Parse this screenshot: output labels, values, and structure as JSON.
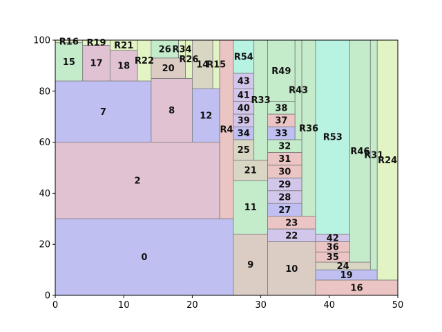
{
  "chart_data": {
    "type": "treemap",
    "xlim": [
      0,
      50
    ],
    "ylim": [
      0,
      100
    ],
    "xticks": [
      "0",
      "10",
      "20",
      "30",
      "40",
      "50"
    ],
    "yticks": [
      "0",
      "20",
      "40",
      "60",
      "80",
      "100"
    ],
    "grid": false,
    "palette": {
      "blue": "#bfbff2",
      "pink": "#e0c2d3",
      "green": "#c4ebca",
      "tan": "#dccdc4",
      "lavender": "#d3c6eb",
      "rose": "#ebc4c4",
      "mint": "#b8f2e0",
      "yellow": "#e3f4c4",
      "gray": "#dad6c4"
    },
    "rects": [
      {
        "label": "0",
        "x0": 0,
        "x1": 26,
        "y0": 0,
        "y1": 30,
        "color": "blue"
      },
      {
        "label": "2",
        "x0": 0,
        "x1": 24,
        "y0": 30,
        "y1": 60,
        "color": "pink"
      },
      {
        "label": "7",
        "x0": 0,
        "x1": 14,
        "y0": 60,
        "y1": 84,
        "color": "blue"
      },
      {
        "label": "15",
        "x0": 0,
        "x1": 4,
        "y0": 84,
        "y1": 99,
        "color": "green"
      },
      {
        "label": "R16",
        "x0": 0,
        "x1": 4,
        "y0": 99,
        "y1": 100,
        "color": "yellow"
      },
      {
        "label": "17",
        "x0": 4,
        "x1": 8,
        "y0": 84,
        "y1": 98,
        "color": "pink"
      },
      {
        "label": "R19",
        "x0": 4,
        "x1": 8,
        "y0": 98,
        "y1": 100,
        "color": "yellow"
      },
      {
        "label": "18",
        "x0": 8,
        "x1": 12,
        "y0": 84,
        "y1": 96,
        "color": "pink"
      },
      {
        "label": "R21",
        "x0": 8,
        "x1": 12,
        "y0": 96,
        "y1": 100,
        "color": "yellow"
      },
      {
        "label": "R22",
        "x0": 12,
        "x1": 14,
        "y0": 84,
        "y1": 100,
        "color": "yellow"
      },
      {
        "label": "8",
        "x0": 14,
        "x1": 20,
        "y0": 60,
        "y1": 85,
        "color": "pink"
      },
      {
        "label": "20",
        "x0": 14,
        "x1": 19,
        "y0": 85,
        "y1": 93,
        "color": "tan"
      },
      {
        "label": "26",
        "x0": 14,
        "x1": 18,
        "y0": 93,
        "y1": 100,
        "color": "green"
      },
      {
        "label": "R34",
        "x0": 18,
        "x1": 19,
        "y0": 93,
        "y1": 100,
        "color": "yellow"
      },
      {
        "label": "R26",
        "x0": 19,
        "x1": 20,
        "y0": 85,
        "y1": 100,
        "color": "yellow"
      },
      {
        "label": "12",
        "x0": 20,
        "x1": 24,
        "y0": 60,
        "y1": 81,
        "color": "blue"
      },
      {
        "label": "14",
        "x0": 20,
        "x1": 23,
        "y0": 81,
        "y1": 100,
        "color": "gray"
      },
      {
        "label": "R15",
        "x0": 23,
        "x1": 24,
        "y0": 81,
        "y1": 100,
        "color": "yellow"
      },
      {
        "label": "R4",
        "x0": 24,
        "x1": 26,
        "y0": 30,
        "y1": 100,
        "color": "rose"
      },
      {
        "label": "9",
        "x0": 26,
        "x1": 31,
        "y0": 0,
        "y1": 24,
        "color": "tan"
      },
      {
        "label": "11",
        "x0": 26,
        "x1": 31,
        "y0": 24,
        "y1": 45,
        "color": "green"
      },
      {
        "label": "21",
        "x0": 26,
        "x1": 31,
        "y0": 45,
        "y1": 53,
        "color": "gray"
      },
      {
        "label": "25",
        "x0": 26,
        "x1": 29,
        "y0": 53,
        "y1": 61,
        "color": "gray"
      },
      {
        "label": "34",
        "x0": 26,
        "x1": 29,
        "y0": 61,
        "y1": 66,
        "color": "blue"
      },
      {
        "label": "39",
        "x0": 26,
        "x1": 29,
        "y0": 66,
        "y1": 71,
        "color": "lavender"
      },
      {
        "label": "40",
        "x0": 26,
        "x1": 29,
        "y0": 71,
        "y1": 76,
        "color": "lavender"
      },
      {
        "label": "41",
        "x0": 26,
        "x1": 29,
        "y0": 76,
        "y1": 81,
        "color": "lavender"
      },
      {
        "label": "43",
        "x0": 26,
        "x1": 29,
        "y0": 81,
        "y1": 87,
        "color": "lavender"
      },
      {
        "label": "R54",
        "x0": 26,
        "x1": 29,
        "y0": 87,
        "y1": 100,
        "color": "mint"
      },
      {
        "label": "R33",
        "x0": 29,
        "x1": 31,
        "y0": 53,
        "y1": 100,
        "color": "green"
      },
      {
        "label": "10",
        "x0": 31,
        "x1": 38,
        "y0": 0,
        "y1": 21,
        "color": "tan"
      },
      {
        "label": "22",
        "x0": 31,
        "x1": 38,
        "y0": 21,
        "y1": 26,
        "color": "lavender"
      },
      {
        "label": "23",
        "x0": 31,
        "x1": 38,
        "y0": 26,
        "y1": 31,
        "color": "rose"
      },
      {
        "label": "27",
        "x0": 31,
        "x1": 36,
        "y0": 31,
        "y1": 36,
        "color": "blue"
      },
      {
        "label": "28",
        "x0": 31,
        "x1": 36,
        "y0": 36,
        "y1": 41,
        "color": "lavender"
      },
      {
        "label": "29",
        "x0": 31,
        "x1": 36,
        "y0": 41,
        "y1": 46,
        "color": "lavender"
      },
      {
        "label": "30",
        "x0": 31,
        "x1": 36,
        "y0": 46,
        "y1": 51,
        "color": "rose"
      },
      {
        "label": "31",
        "x0": 31,
        "x1": 36,
        "y0": 51,
        "y1": 56,
        "color": "rose"
      },
      {
        "label": "32",
        "x0": 31,
        "x1": 36,
        "y0": 56,
        "y1": 61,
        "color": "green"
      },
      {
        "label": "33",
        "x0": 31,
        "x1": 35,
        "y0": 61,
        "y1": 66,
        "color": "blue"
      },
      {
        "label": "37",
        "x0": 31,
        "x1": 35,
        "y0": 66,
        "y1": 71,
        "color": "rose"
      },
      {
        "label": "38",
        "x0": 31,
        "x1": 35,
        "y0": 71,
        "y1": 76,
        "color": "green"
      },
      {
        "label": "R49",
        "x0": 31,
        "x1": 35,
        "y0": 76,
        "y1": 100,
        "color": "green"
      },
      {
        "label": "R43",
        "x0": 35,
        "x1": 36,
        "y0": 61,
        "y1": 100,
        "color": "green"
      },
      {
        "label": "R36",
        "x0": 36,
        "x1": 38,
        "y0": 31,
        "y1": 100,
        "color": "green"
      },
      {
        "label": "16",
        "x0": 38,
        "x1": 50,
        "y0": 0,
        "y1": 6,
        "color": "rose"
      },
      {
        "label": "19",
        "x0": 38,
        "x1": 47,
        "y0": 6,
        "y1": 10,
        "color": "blue"
      },
      {
        "label": "24",
        "x0": 38,
        "x1": 46,
        "y0": 10,
        "y1": 13,
        "color": "gray"
      },
      {
        "label": "35",
        "x0": 38,
        "x1": 43,
        "y0": 13,
        "y1": 17,
        "color": "rose"
      },
      {
        "label": "36",
        "x0": 38,
        "x1": 43,
        "y0": 17,
        "y1": 21,
        "color": "rose"
      },
      {
        "label": "42",
        "x0": 38,
        "x1": 43,
        "y0": 21,
        "y1": 24,
        "color": "lavender"
      },
      {
        "label": "R53",
        "x0": 38,
        "x1": 43,
        "y0": 24,
        "y1": 100,
        "color": "mint"
      },
      {
        "label": "R46",
        "x0": 43,
        "x1": 46,
        "y0": 13,
        "y1": 100,
        "color": "green"
      },
      {
        "label": "R31",
        "x0": 46,
        "x1": 47,
        "y0": 10,
        "y1": 100,
        "color": "green"
      },
      {
        "label": "R24",
        "x0": 47,
        "x1": 50,
        "y0": 6,
        "y1": 100,
        "color": "yellow"
      }
    ]
  }
}
